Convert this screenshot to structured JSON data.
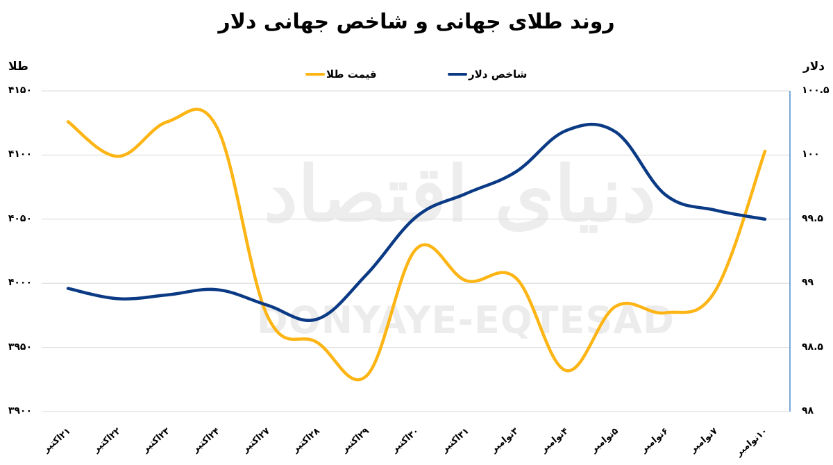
{
  "title": "روند طلای جهانی و شاخص جهانی دلار",
  "axes": {
    "left_title": "طلا",
    "right_title": "دلار",
    "left_ticks": [
      "۴۱۵۰",
      "۴۱۰۰",
      "۴۰۵۰",
      "۴۰۰۰",
      "۳۹۵۰",
      "۳۹۰۰"
    ],
    "right_ticks": [
      "۱۰۰.۵",
      "۱۰۰",
      "۹۹.۵",
      "۹۹",
      "۹۸.۵",
      "۹۸"
    ]
  },
  "legend": {
    "gold_label": "قیمت طلا",
    "dollar_label": "شاخص دلار"
  },
  "watermark": {
    "latin": "DONYAYE-EQTESAD",
    "persian": "دنیای اقتصاد"
  },
  "colors": {
    "gold": "#FDB515",
    "dollar": "#0B3A85",
    "grid": "#d9d9d9",
    "right_axis": "#1f6fbf"
  },
  "chart_data": {
    "type": "line",
    "title": "روند طلای جهانی و شاخص جهانی دلار",
    "xlabel": "",
    "categories": [
      "۲۱اکتبر",
      "۲۲اکتبر",
      "۲۳اکتبر",
      "۲۴اکتبر",
      "۲۷اکتبر",
      "۲۸اکتبر",
      "۲۹اکتبر",
      "۳۰اکتبر",
      "۳۱اکتبر",
      "۳نوامبر",
      "۴نوامبر",
      "۵نوامبر",
      "۶نوامبر",
      "۷نوامبر",
      "۱۰نوامبر"
    ],
    "series": [
      {
        "name": "قیمت طلا",
        "axis": "left",
        "ylabel": "طلا",
        "ylim": [
          3900,
          4150
        ],
        "values": [
          4126,
          4099,
          4126,
          4121,
          3975,
          3954,
          3928,
          4027,
          4002,
          4004,
          3932,
          3982,
          3977,
          3994,
          4103
        ]
      },
      {
        "name": "شاخص دلار",
        "axis": "right",
        "ylabel": "دلار",
        "ylim": [
          98,
          100.5
        ],
        "values": [
          98.96,
          98.88,
          98.91,
          98.95,
          98.83,
          98.72,
          99.07,
          99.52,
          99.7,
          99.87,
          100.19,
          100.18,
          99.69,
          99.57,
          99.5
        ]
      }
    ],
    "left_axis": {
      "ticks": [
        4150,
        4100,
        4050,
        4000,
        3950,
        3900
      ]
    },
    "right_axis": {
      "ticks": [
        100.5,
        100,
        99.5,
        99,
        98.5,
        98
      ]
    },
    "grid": true,
    "legend_position": "top"
  }
}
